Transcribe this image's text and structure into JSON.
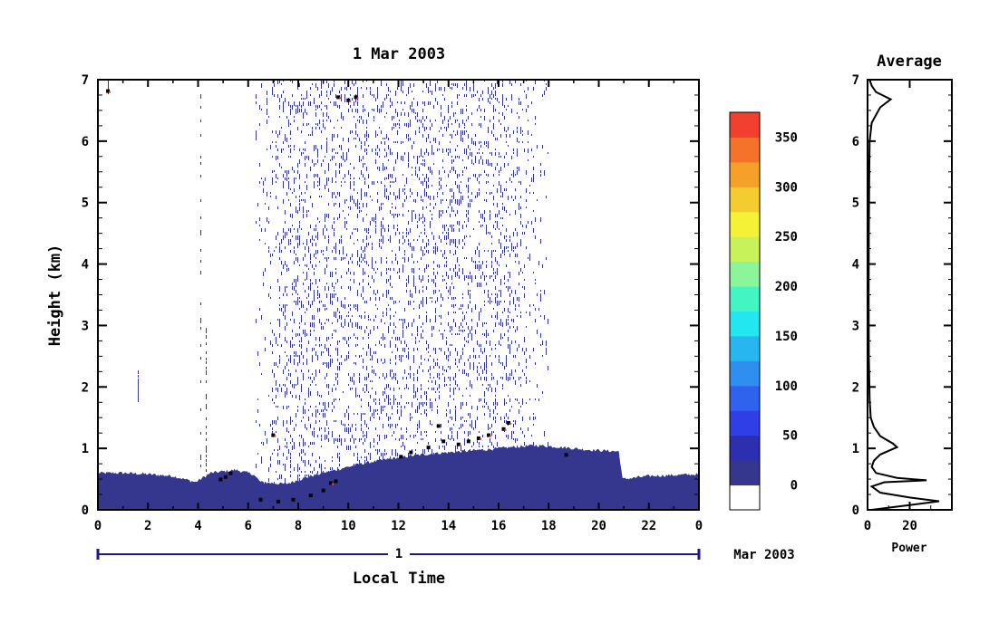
{
  "chart_data": [
    {
      "type": "heatmap",
      "title": "1 Mar 2003",
      "xlabel": "Local Time",
      "ylabel": "Height (km)",
      "xlim": [
        0,
        24
      ],
      "ylim": [
        0,
        7
      ],
      "x_ticks": [
        "0",
        "2",
        "4",
        "6",
        "8",
        "10",
        "12",
        "14",
        "16",
        "18",
        "20",
        "22",
        "0"
      ],
      "y_ticks": [
        "0",
        "1",
        "2",
        "3",
        "4",
        "5",
        "6",
        "7"
      ],
      "date_axis": {
        "day_label": "1",
        "month_label": "Mar 2003"
      },
      "colorbar": {
        "ticks": [
          "0",
          "50",
          "100",
          "150",
          "200",
          "250",
          "300",
          "350"
        ],
        "range": [
          0,
          375
        ],
        "colors": [
          "#ffffff",
          "#35378f",
          "#2b2fb0",
          "#2f3ee6",
          "#2f63ee",
          "#2f8ef0",
          "#28b6f0",
          "#22e6f0",
          "#44f5c4",
          "#8cf59a",
          "#c8f25a",
          "#f5f235",
          "#f5cc2f",
          "#f5a028",
          "#f5722a",
          "#f2402e"
        ]
      },
      "boundary_layer_top_km": [
        [
          0,
          0.6
        ],
        [
          1,
          0.6
        ],
        [
          2,
          0.58
        ],
        [
          3,
          0.55
        ],
        [
          3.9,
          0.45
        ],
        [
          4.5,
          0.6
        ],
        [
          5.5,
          0.65
        ],
        [
          6.2,
          0.58
        ],
        [
          6.5,
          0.45
        ],
        [
          7.5,
          0.42
        ],
        [
          8.5,
          0.55
        ],
        [
          9.5,
          0.65
        ],
        [
          10.5,
          0.75
        ],
        [
          11.5,
          0.82
        ],
        [
          12.5,
          0.88
        ],
        [
          13.5,
          0.92
        ],
        [
          14.5,
          0.95
        ],
        [
          15.5,
          0.98
        ],
        [
          16.5,
          1.02
        ],
        [
          17.5,
          1.05
        ],
        [
          18.5,
          1.02
        ],
        [
          19.5,
          0.98
        ],
        [
          20.8,
          0.95
        ],
        [
          20.95,
          0.5
        ],
        [
          22,
          0.55
        ],
        [
          24,
          0.58
        ]
      ],
      "noise_region_hours": [
        6.3,
        18.0
      ],
      "series_note_colors": {
        "fill": "#35378f",
        "accent": "#f2402e"
      }
    },
    {
      "type": "line",
      "title": "Average",
      "xlabel": "Power",
      "ylabel": "",
      "xlim": [
        0,
        40
      ],
      "ylim": [
        0,
        7
      ],
      "x_ticks": [
        "0",
        "20"
      ],
      "y_ticks": [
        "0",
        "1",
        "2",
        "3",
        "4",
        "5",
        "6",
        "7"
      ],
      "points": [
        [
          2,
          0.0
        ],
        [
          25,
          0.1
        ],
        [
          34,
          0.14
        ],
        [
          20,
          0.2
        ],
        [
          6,
          0.28
        ],
        [
          2,
          0.38
        ],
        [
          8,
          0.45
        ],
        [
          28,
          0.48
        ],
        [
          14,
          0.52
        ],
        [
          4,
          0.6
        ],
        [
          2,
          0.7
        ],
        [
          3,
          0.8
        ],
        [
          6,
          0.9
        ],
        [
          14,
          1.02
        ],
        [
          12,
          1.08
        ],
        [
          6,
          1.2
        ],
        [
          3,
          1.35
        ],
        [
          1.5,
          1.5
        ],
        [
          1,
          1.8
        ],
        [
          0.6,
          2.5
        ],
        [
          0.5,
          3.5
        ],
        [
          0.6,
          4.5
        ],
        [
          0.8,
          5.5
        ],
        [
          1,
          6.0
        ],
        [
          2,
          6.3
        ],
        [
          6,
          6.55
        ],
        [
          11,
          6.68
        ],
        [
          4,
          6.8
        ],
        [
          2,
          6.9
        ],
        [
          1,
          7.0
        ]
      ]
    }
  ]
}
